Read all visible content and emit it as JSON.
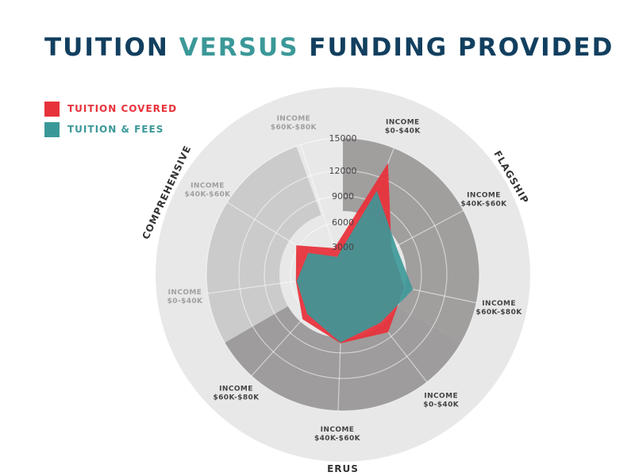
{
  "title": {
    "part1": "TUITION ",
    "part2": "VERSUS",
    "part3": " FUNDING PROVIDED"
  },
  "colors": {
    "title": "#123f5f",
    "accent": "#3b9898",
    "outer_disc": "#e8e8e8",
    "flagship_sector": "#a19e9e",
    "erus_sector": "#9e9c9c",
    "comprehensive_sector": "#cbcbcb",
    "tuition_covered": "#e8323b",
    "tuition_fees": "#3b9898"
  },
  "legend": [
    {
      "label": "TUITION COVERED",
      "color": "#e8323b"
    },
    {
      "label": "TUITION & FEES",
      "color": "#3b9898"
    }
  ],
  "chart_data": {
    "type": "radar",
    "radial_ticks": [
      3000,
      6000,
      9000,
      12000,
      15000
    ],
    "radial_max": 18000,
    "groups": [
      {
        "name": "FLAGSHIP",
        "categories": [
          [
            "INCOME",
            "$0-$40K"
          ],
          [
            "INCOME",
            "$40K-$60K"
          ],
          [
            "INCOME",
            "$60K-$80K"
          ]
        ]
      },
      {
        "name": "ERUS",
        "categories": [
          [
            "INCOME",
            "$0-$40K"
          ],
          [
            "INCOME",
            "$40K-$60K"
          ],
          [
            "INCOME",
            "$60K-$80K"
          ]
        ]
      },
      {
        "name": "COMPREHENSIVE",
        "categories": [
          [
            "INCOME",
            "$0-$40K"
          ],
          [
            "INCOME",
            "$40K-$60K"
          ],
          [
            "INCOME",
            "$60K-$80K"
          ]
        ]
      }
    ],
    "series": [
      {
        "name": "TUITION COVERED",
        "values": [
          13500,
          6300,
          7200,
          8400,
          7900,
          6900,
          5400,
          6300,
          3000
        ]
      },
      {
        "name": "TUITION & FEES",
        "values": [
          10400,
          6900,
          8200,
          7000,
          7800,
          6100,
          5300,
          4600,
          2000
        ]
      }
    ]
  }
}
